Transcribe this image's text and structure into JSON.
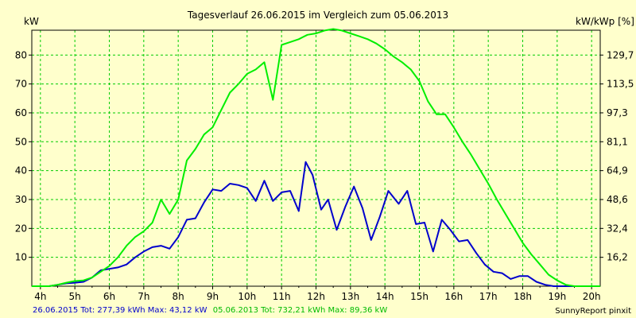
{
  "chart_data": {
    "type": "line",
    "title": "Tagesverlauf 26.06.2015 im Vergleich zum 05.06.2013",
    "ylabel_left": "kW",
    "ylabel_right": "kW/kWp [%]",
    "x_ticks": [
      "4h",
      "5h",
      "6h",
      "7h",
      "8h",
      "9h",
      "10h",
      "11h",
      "12h",
      "13h",
      "14h",
      "15h",
      "16h",
      "17h",
      "18h",
      "19h",
      "20h"
    ],
    "y_ticks_left": [
      "10",
      "20",
      "30",
      "40",
      "50",
      "60",
      "70",
      "80"
    ],
    "y_ticks_right": [
      "16,2",
      "32,4",
      "48,6",
      "64,9",
      "81,1",
      "97,3",
      "113,5",
      "129,7"
    ],
    "xlim": [
      3.75,
      20.25
    ],
    "ylim": [
      0,
      88.6
    ],
    "grid": true,
    "series": [
      {
        "name": "26.06.2015",
        "color": "#0000cc",
        "points": [
          [
            3.75,
            0
          ],
          [
            4.25,
            0
          ],
          [
            4.5,
            0.5
          ],
          [
            4.75,
            1
          ],
          [
            5,
            1.2
          ],
          [
            5.25,
            1.5
          ],
          [
            5.5,
            3
          ],
          [
            5.75,
            5.5
          ],
          [
            6,
            6
          ],
          [
            6.25,
            6.5
          ],
          [
            6.5,
            7.5
          ],
          [
            6.75,
            10
          ],
          [
            7,
            12
          ],
          [
            7.25,
            13.5
          ],
          [
            7.5,
            14
          ],
          [
            7.75,
            13
          ],
          [
            8,
            17
          ],
          [
            8.25,
            23
          ],
          [
            8.5,
            23.5
          ],
          [
            8.75,
            29
          ],
          [
            9,
            33.5
          ],
          [
            9.25,
            33
          ],
          [
            9.5,
            35.5
          ],
          [
            9.75,
            35
          ],
          [
            10,
            34
          ],
          [
            10.25,
            29.5
          ],
          [
            10.5,
            36.5
          ],
          [
            10.75,
            29.5
          ],
          [
            11,
            32.5
          ],
          [
            11.25,
            33
          ],
          [
            11.5,
            26
          ],
          [
            11.7,
            43
          ],
          [
            11.9,
            38.5
          ],
          [
            12.15,
            26.5
          ],
          [
            12.35,
            30
          ],
          [
            12.6,
            19.5
          ],
          [
            12.85,
            27.5
          ],
          [
            13.1,
            34.5
          ],
          [
            13.35,
            27
          ],
          [
            13.6,
            16
          ],
          [
            13.85,
            24
          ],
          [
            14.1,
            33
          ],
          [
            14.4,
            28.5
          ],
          [
            14.65,
            33
          ],
          [
            14.9,
            21.5
          ],
          [
            15.15,
            22
          ],
          [
            15.4,
            12
          ],
          [
            15.65,
            23
          ],
          [
            15.9,
            19.5
          ],
          [
            16.15,
            15.5
          ],
          [
            16.4,
            16
          ],
          [
            16.65,
            11.5
          ],
          [
            16.9,
            7.5
          ],
          [
            17.15,
            5
          ],
          [
            17.4,
            4.5
          ],
          [
            17.65,
            2.5
          ],
          [
            17.9,
            3.5
          ],
          [
            18.15,
            3.5
          ],
          [
            18.4,
            1.5
          ],
          [
            18.65,
            0.5
          ],
          [
            18.9,
            0
          ],
          [
            20.25,
            0
          ]
        ]
      },
      {
        "name": "05.06.2013",
        "color": "#00ee00",
        "points": [
          [
            3.75,
            0
          ],
          [
            4.25,
            0
          ],
          [
            4.5,
            0.5
          ],
          [
            4.75,
            1.2
          ],
          [
            5,
            1.8
          ],
          [
            5.25,
            2
          ],
          [
            5.5,
            3
          ],
          [
            5.75,
            5
          ],
          [
            6,
            7
          ],
          [
            6.25,
            10
          ],
          [
            6.5,
            14
          ],
          [
            6.75,
            17
          ],
          [
            7,
            19
          ],
          [
            7.25,
            22
          ],
          [
            7.5,
            30
          ],
          [
            7.75,
            25
          ],
          [
            8,
            30
          ],
          [
            8.25,
            43.5
          ],
          [
            8.5,
            47.5
          ],
          [
            8.75,
            52.5
          ],
          [
            9,
            55
          ],
          [
            9.25,
            61
          ],
          [
            9.5,
            67
          ],
          [
            9.75,
            70
          ],
          [
            10,
            73.5
          ],
          [
            10.25,
            75
          ],
          [
            10.5,
            77.5
          ],
          [
            10.75,
            64.5
          ],
          [
            11,
            83.5
          ],
          [
            11.25,
            84.5
          ],
          [
            11.5,
            85.5
          ],
          [
            11.75,
            87
          ],
          [
            12,
            87.5
          ],
          [
            12.25,
            88.5
          ],
          [
            12.5,
            89
          ],
          [
            12.75,
            88.5
          ],
          [
            13,
            87.5
          ],
          [
            13.25,
            86.5
          ],
          [
            13.5,
            85.5
          ],
          [
            13.75,
            84
          ],
          [
            14,
            82
          ],
          [
            14.25,
            79.5
          ],
          [
            14.5,
            77.5
          ],
          [
            14.75,
            75
          ],
          [
            15,
            71
          ],
          [
            15.25,
            64
          ],
          [
            15.5,
            59.5
          ],
          [
            15.75,
            59.5
          ],
          [
            16,
            55
          ],
          [
            16.25,
            50
          ],
          [
            16.5,
            45.5
          ],
          [
            16.75,
            40.5
          ],
          [
            17,
            35.5
          ],
          [
            17.25,
            30
          ],
          [
            17.5,
            25
          ],
          [
            17.75,
            20
          ],
          [
            18,
            15
          ],
          [
            18.25,
            11
          ],
          [
            18.5,
            7.5
          ],
          [
            18.75,
            4
          ],
          [
            19,
            2
          ],
          [
            19.25,
            0.5
          ],
          [
            19.5,
            0
          ],
          [
            20.25,
            0
          ]
        ]
      }
    ],
    "legend": {
      "position": "bottom-left",
      "entry_1": {
        "label": "26.06.2015 Tot: 277,39 kWh Max: 43,12 kW",
        "color": "#0000cc"
      },
      "entry_2": {
        "label": "05.06.2013 Tot: 732,21 kWh Max: 89,36 kW",
        "color": "#00bb00"
      }
    },
    "footer": "SunnyReport pinxit"
  }
}
